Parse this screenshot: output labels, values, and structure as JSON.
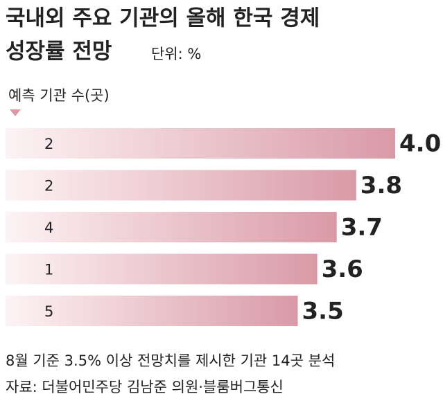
{
  "chart_data": {
    "type": "hbar",
    "title_lines": [
      "국내외 주요 기관의 올해 한국 경제",
      "성장률 전망"
    ],
    "unit": "단위: %",
    "category_header": "예측 기관 수(곳)",
    "categories": [
      "2",
      "2",
      "4",
      "1",
      "5"
    ],
    "values": [
      4.0,
      3.8,
      3.7,
      3.6,
      3.5
    ],
    "value_labels": [
      "4.0",
      "3.8",
      "3.7",
      "3.6",
      "3.5"
    ],
    "color": "#d99aa6",
    "note": "8월 기준 3.5% 이상 전망치를 제시한 기관 14곳 분석",
    "source": "자료: 더불어민주당 김남준 의원·블룸버그통신"
  }
}
